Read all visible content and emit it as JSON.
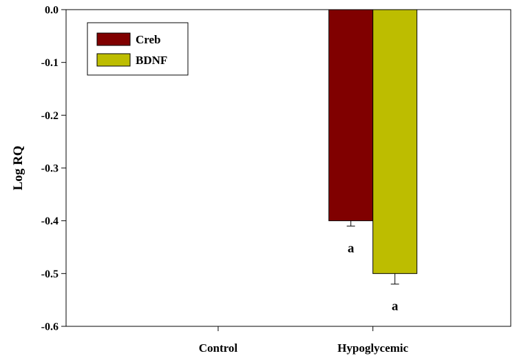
{
  "chart_data": {
    "type": "bar",
    "title": "",
    "xlabel": "",
    "ylabel": "Log RQ",
    "ylim": [
      -0.6,
      0.0
    ],
    "yticks": [
      "0.0",
      "-0.1",
      "-0.2",
      "-0.3",
      "-0.4",
      "-0.5",
      "-0.6"
    ],
    "categories": [
      "Control",
      "Hypoglycemic"
    ],
    "series": [
      {
        "name": "Creb",
        "color": "#800000",
        "values": [
          0.0,
          -0.4
        ],
        "errors": [
          0.0,
          0.01
        ],
        "labels": [
          "",
          "a"
        ]
      },
      {
        "name": "BDNF",
        "color": "#BDBD00",
        "values": [
          0.0,
          -0.5
        ],
        "errors": [
          0.0,
          0.02
        ],
        "labels": [
          "",
          "a"
        ]
      }
    ],
    "legend": {
      "placement": "top-left",
      "entries": [
        "Creb",
        "BDNF"
      ]
    },
    "grid": false
  }
}
